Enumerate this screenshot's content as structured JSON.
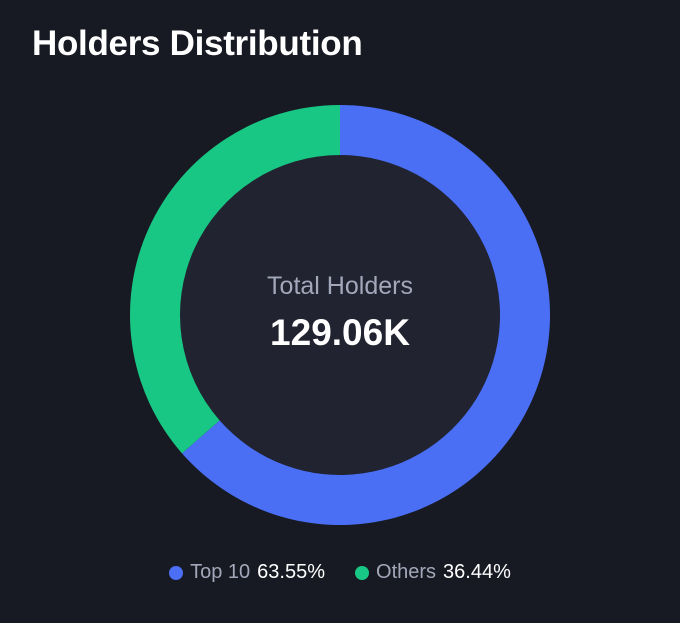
{
  "header": {
    "title": "Holders Distribution"
  },
  "center": {
    "label": "Total Holders",
    "value": "129.06K"
  },
  "colors": {
    "background": "#181a23",
    "inner": "#212330",
    "top10": "#4a6ff5",
    "others": "#19c784"
  },
  "chart_data": {
    "type": "pie",
    "title": "Holders Distribution",
    "donut": true,
    "slices": [
      {
        "name": "Top 10",
        "value": 63.55,
        "label": "63.55%",
        "color": "#4a6ff5"
      },
      {
        "name": "Others",
        "value": 36.44,
        "label": "36.44%",
        "color": "#19c784"
      }
    ],
    "legend": "bottom"
  }
}
